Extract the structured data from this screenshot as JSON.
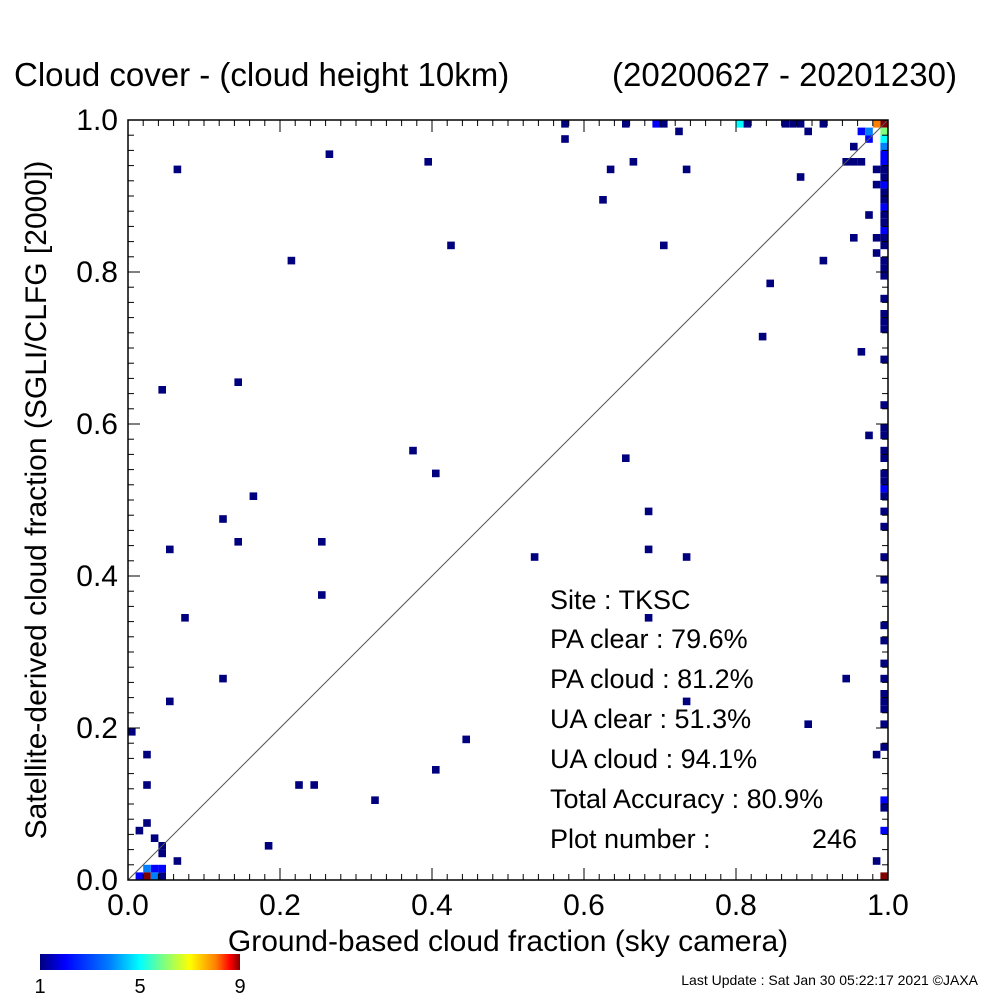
{
  "chart_data": {
    "type": "heatmap",
    "title": "Cloud cover - (cloud height 10km)",
    "date_range": "(20200627 - 20201230)",
    "xlabel": "Ground-based cloud fraction (sky camera)",
    "ylabel": "Satellite-derived cloud fraction (SGLI/CLFG [2000])",
    "xlim": [
      0.0,
      1.0
    ],
    "ylim": [
      0.0,
      1.0
    ],
    "x_ticks": [
      "0.0",
      "0.2",
      "0.4",
      "0.6",
      "0.8",
      "1.0"
    ],
    "y_ticks": [
      "0.0",
      "0.2",
      "0.4",
      "0.6",
      "0.8",
      "1.0"
    ],
    "grid": false,
    "diagonal_line": true,
    "bin_size": 0.01,
    "colorbar": {
      "min": 1,
      "max": 9,
      "ticks": [
        "1",
        "5",
        "9"
      ]
    },
    "stats": {
      "site": "Site : TKSC",
      "pa_clear": "PA clear :  79.6%",
      "pa_cloud": "PA cloud :  81.2%",
      "ua_clear": "UA clear :  51.3%",
      "ua_cloud": "UA cloud :  94.1%",
      "total_accuracy": "Total Accuracy :  80.9%",
      "plot_number_label": "Plot number :",
      "plot_number_value": "246"
    },
    "points": [
      [
        0.005,
        0.195,
        1
      ],
      [
        0.015,
        0.065,
        1
      ],
      [
        0.025,
        0.075,
        1
      ],
      [
        0.025,
        0.125,
        1
      ],
      [
        0.025,
        0.165,
        1
      ],
      [
        0.035,
        0.055,
        1
      ],
      [
        0.045,
        0.045,
        1
      ],
      [
        0.045,
        0.035,
        1
      ],
      [
        0.065,
        0.025,
        1
      ],
      [
        0.045,
        0.015,
        2
      ],
      [
        0.035,
        0.015,
        2
      ],
      [
        0.025,
        0.015,
        3
      ],
      [
        0.015,
        0.005,
        2
      ],
      [
        0.025,
        0.005,
        9
      ],
      [
        0.035,
        0.005,
        3
      ],
      [
        0.045,
        0.005,
        1
      ],
      [
        0.065,
        0.935,
        1
      ],
      [
        0.045,
        0.645,
        1
      ],
      [
        0.055,
        0.435,
        1
      ],
      [
        0.055,
        0.235,
        1
      ],
      [
        0.075,
        0.345,
        1
      ],
      [
        0.125,
        0.475,
        1
      ],
      [
        0.125,
        0.265,
        1
      ],
      [
        0.145,
        0.655,
        1
      ],
      [
        0.145,
        0.445,
        1
      ],
      [
        0.165,
        0.505,
        1
      ],
      [
        0.185,
        0.045,
        1
      ],
      [
        0.215,
        0.815,
        1
      ],
      [
        0.225,
        0.125,
        1
      ],
      [
        0.245,
        0.125,
        1
      ],
      [
        0.255,
        0.445,
        1
      ],
      [
        0.255,
        0.375,
        1
      ],
      [
        0.265,
        0.955,
        1
      ],
      [
        0.325,
        0.105,
        1
      ],
      [
        0.375,
        0.565,
        1
      ],
      [
        0.395,
        0.945,
        1
      ],
      [
        0.405,
        0.535,
        1
      ],
      [
        0.405,
        0.145,
        1
      ],
      [
        0.425,
        0.835,
        1
      ],
      [
        0.445,
        0.185,
        1
      ],
      [
        0.535,
        0.425,
        1
      ],
      [
        0.575,
        0.995,
        1
      ],
      [
        0.575,
        0.975,
        1
      ],
      [
        0.625,
        0.895,
        1
      ],
      [
        0.635,
        0.935,
        1
      ],
      [
        0.655,
        0.995,
        1
      ],
      [
        0.655,
        0.555,
        1
      ],
      [
        0.665,
        0.945,
        1
      ],
      [
        0.685,
        0.485,
        1
      ],
      [
        0.685,
        0.435,
        1
      ],
      [
        0.685,
        0.345,
        1
      ],
      [
        0.695,
        0.995,
        2
      ],
      [
        0.705,
        0.995,
        1
      ],
      [
        0.705,
        0.835,
        1
      ],
      [
        0.725,
        0.985,
        1
      ],
      [
        0.735,
        0.935,
        1
      ],
      [
        0.735,
        0.425,
        1
      ],
      [
        0.735,
        0.235,
        1
      ],
      [
        0.805,
        0.995,
        4
      ],
      [
        0.815,
        0.995,
        1
      ],
      [
        0.835,
        0.715,
        1
      ],
      [
        0.845,
        0.785,
        1
      ],
      [
        0.865,
        0.995,
        1
      ],
      [
        0.875,
        0.995,
        1
      ],
      [
        0.885,
        0.995,
        1
      ],
      [
        0.885,
        0.925,
        1
      ],
      [
        0.895,
        0.985,
        1
      ],
      [
        0.895,
        0.205,
        1
      ],
      [
        0.915,
        0.995,
        1
      ],
      [
        0.915,
        0.815,
        1
      ],
      [
        0.945,
        0.945,
        1
      ],
      [
        0.945,
        0.265,
        1
      ],
      [
        0.955,
        0.965,
        1
      ],
      [
        0.955,
        0.945,
        1
      ],
      [
        0.955,
        0.845,
        1
      ],
      [
        0.965,
        0.945,
        1
      ],
      [
        0.965,
        0.695,
        1
      ],
      [
        0.975,
        0.875,
        1
      ],
      [
        0.975,
        0.585,
        1
      ],
      [
        0.965,
        0.985,
        2
      ],
      [
        0.975,
        0.975,
        2
      ],
      [
        0.985,
        0.995,
        7
      ],
      [
        0.985,
        0.935,
        1
      ],
      [
        0.985,
        0.915,
        1
      ],
      [
        0.985,
        0.845,
        1
      ],
      [
        0.985,
        0.825,
        1
      ],
      [
        0.985,
        0.165,
        1
      ],
      [
        0.985,
        0.025,
        1
      ],
      [
        0.975,
        0.985,
        3
      ],
      [
        0.995,
        0.995,
        9
      ],
      [
        0.995,
        0.985,
        5
      ],
      [
        0.995,
        0.975,
        4
      ],
      [
        0.995,
        0.965,
        3
      ],
      [
        0.995,
        0.955,
        2
      ],
      [
        0.995,
        0.945,
        2
      ],
      [
        0.995,
        0.935,
        1
      ],
      [
        0.995,
        0.925,
        1
      ],
      [
        0.995,
        0.915,
        2
      ],
      [
        0.995,
        0.905,
        1
      ],
      [
        0.995,
        0.895,
        1
      ],
      [
        0.995,
        0.885,
        2
      ],
      [
        0.995,
        0.875,
        1
      ],
      [
        0.995,
        0.865,
        1
      ],
      [
        0.995,
        0.855,
        2
      ],
      [
        0.995,
        0.845,
        1
      ],
      [
        0.995,
        0.835,
        1
      ],
      [
        0.995,
        0.815,
        1
      ],
      [
        0.995,
        0.805,
        1
      ],
      [
        0.995,
        0.795,
        1
      ],
      [
        0.995,
        0.765,
        1
      ],
      [
        0.995,
        0.745,
        1
      ],
      [
        0.995,
        0.735,
        1
      ],
      [
        0.995,
        0.725,
        1
      ],
      [
        0.995,
        0.685,
        1
      ],
      [
        0.995,
        0.625,
        1
      ],
      [
        0.995,
        0.595,
        1
      ],
      [
        0.995,
        0.585,
        1
      ],
      [
        0.995,
        0.565,
        1
      ],
      [
        0.995,
        0.555,
        1
      ],
      [
        0.995,
        0.535,
        1
      ],
      [
        0.995,
        0.525,
        1
      ],
      [
        0.995,
        0.515,
        2
      ],
      [
        0.995,
        0.505,
        1
      ],
      [
        0.995,
        0.485,
        1
      ],
      [
        0.995,
        0.465,
        1
      ],
      [
        0.995,
        0.425,
        1
      ],
      [
        0.995,
        0.395,
        1
      ],
      [
        0.995,
        0.335,
        1
      ],
      [
        0.995,
        0.315,
        1
      ],
      [
        0.995,
        0.285,
        1
      ],
      [
        0.995,
        0.265,
        1
      ],
      [
        0.995,
        0.245,
        1
      ],
      [
        0.995,
        0.235,
        1
      ],
      [
        0.995,
        0.225,
        1
      ],
      [
        0.995,
        0.205,
        1
      ],
      [
        0.995,
        0.175,
        1
      ],
      [
        0.995,
        0.105,
        2
      ],
      [
        0.995,
        0.095,
        1
      ],
      [
        0.995,
        0.065,
        2
      ],
      [
        0.995,
        0.005,
        9
      ]
    ]
  },
  "footer": {
    "last_update": "Last Update : Sat Jan 30 05:22:17 2021  ©JAXA"
  },
  "colors": {
    "axis": "#000000",
    "diagonal": "#555555",
    "scale": [
      "#00007f",
      "#0000ff",
      "#007fff",
      "#00ffff",
      "#7fff7f",
      "#ffff00",
      "#ff7f00",
      "#ff0000",
      "#7f0000"
    ]
  }
}
